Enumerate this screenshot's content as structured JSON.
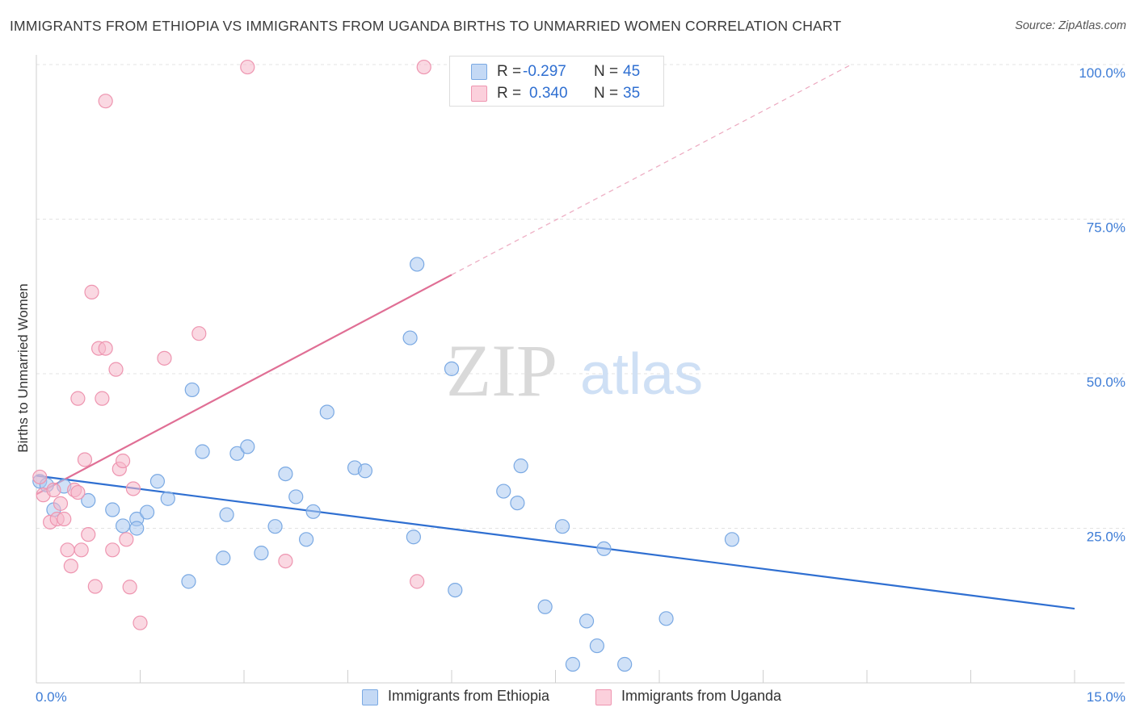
{
  "title": "IMMIGRANTS FROM ETHIOPIA VS IMMIGRANTS FROM UGANDA BIRTHS TO UNMARRIED WOMEN CORRELATION CHART",
  "source": "Source: ZipAtlas.com",
  "watermark": {
    "zip": "ZIP",
    "atlas": "atlas"
  },
  "legend": {
    "rows": [
      {
        "r_label": "R =",
        "r_value": "-0.297",
        "n_label": "N =",
        "n_value": "45",
        "color": "#aac8f0"
      },
      {
        "r_label": "R =",
        "r_value": "0.340",
        "n_label": "N =",
        "n_value": "35",
        "color": "#f6b8ca"
      }
    ]
  },
  "bottom_legend": [
    {
      "label": "Immigrants from Ethiopia",
      "color": "#aac8f0"
    },
    {
      "label": "Immigrants from Uganda",
      "color": "#f6b8ca"
    }
  ],
  "chart_data": {
    "type": "scatter",
    "title": "IMMIGRANTS FROM ETHIOPIA VS IMMIGRANTS FROM UGANDA BIRTHS TO UNMARRIED WOMEN CORRELATION CHART",
    "xlabel": "",
    "ylabel": "Births to Unmarried Women",
    "xlim": [
      0,
      15
    ],
    "ylim": [
      0,
      100
    ],
    "x_tick_labels": [
      "0.0%",
      "15.0%"
    ],
    "y_ticks": [
      25,
      50,
      75,
      100
    ],
    "y_tick_labels": [
      "25.0%",
      "50.0%",
      "75.0%",
      "100.0%"
    ],
    "grid": true,
    "legend_position": "top-center",
    "series": [
      {
        "name": "Immigrants from Ethiopia",
        "color": "#aac8f0",
        "stroke": "#7aa9e3",
        "trend_color": "#2f6fd1",
        "trend": {
          "x0": 0,
          "y0": 33.5,
          "x1": 15,
          "y1": 12.0
        },
        "points": [
          [
            0.05,
            32.6
          ],
          [
            0.25,
            28.0
          ],
          [
            0.4,
            31.8
          ],
          [
            0.75,
            29.5
          ],
          [
            1.1,
            28.0
          ],
          [
            1.25,
            25.4
          ],
          [
            1.45,
            26.5
          ],
          [
            1.6,
            27.6
          ],
          [
            1.75,
            32.6
          ],
          [
            1.9,
            29.8
          ],
          [
            2.2,
            16.4
          ],
          [
            2.25,
            47.4
          ],
          [
            2.4,
            37.4
          ],
          [
            2.7,
            20.2
          ],
          [
            2.75,
            27.2
          ],
          [
            2.9,
            37.1
          ],
          [
            3.05,
            38.2
          ],
          [
            3.25,
            21.0
          ],
          [
            3.45,
            25.3
          ],
          [
            3.6,
            33.8
          ],
          [
            3.75,
            30.1
          ],
          [
            3.9,
            23.2
          ],
          [
            4.0,
            27.7
          ],
          [
            4.2,
            43.8
          ],
          [
            4.6,
            34.8
          ],
          [
            4.75,
            34.3
          ],
          [
            5.4,
            55.8
          ],
          [
            5.45,
            23.6
          ],
          [
            5.5,
            67.7
          ],
          [
            6.0,
            50.8
          ],
          [
            6.05,
            15.0
          ],
          [
            6.75,
            31.0
          ],
          [
            6.95,
            29.1
          ],
          [
            7.0,
            35.1
          ],
          [
            7.35,
            12.3
          ],
          [
            7.6,
            25.3
          ],
          [
            7.75,
            3.0
          ],
          [
            7.95,
            10.0
          ],
          [
            8.1,
            6.0
          ],
          [
            8.2,
            21.7
          ],
          [
            8.5,
            3.0
          ],
          [
            9.1,
            10.4
          ],
          [
            10.05,
            23.2
          ],
          [
            0.15,
            32.0
          ],
          [
            1.45,
            25.0
          ]
        ]
      },
      {
        "name": "Immigrants from Uganda",
        "color": "#f6b8ca",
        "stroke": "#ee95b0",
        "trend_color": "#e06f95",
        "trend": {
          "x0": 0,
          "y0": 30.5,
          "x1": 6.0,
          "y1": 66.0
        },
        "trend_extension": {
          "x0": 6.0,
          "y0": 66.0,
          "x1": 15,
          "y1": 119.0
        },
        "points": [
          [
            0.05,
            33.3
          ],
          [
            0.1,
            30.4
          ],
          [
            0.2,
            26.0
          ],
          [
            0.25,
            31.2
          ],
          [
            0.3,
            26.5
          ],
          [
            0.35,
            29.0
          ],
          [
            0.4,
            26.5
          ],
          [
            0.45,
            21.5
          ],
          [
            0.5,
            18.9
          ],
          [
            0.55,
            31.2
          ],
          [
            0.6,
            46.0
          ],
          [
            0.65,
            21.5
          ],
          [
            0.7,
            36.1
          ],
          [
            0.75,
            24.0
          ],
          [
            0.8,
            63.2
          ],
          [
            0.85,
            15.6
          ],
          [
            0.9,
            54.1
          ],
          [
            0.95,
            46.0
          ],
          [
            1.0,
            54.1
          ],
          [
            1.1,
            21.5
          ],
          [
            1.15,
            50.7
          ],
          [
            1.2,
            34.6
          ],
          [
            1.25,
            35.9
          ],
          [
            1.3,
            23.2
          ],
          [
            1.35,
            15.5
          ],
          [
            1.4,
            31.4
          ],
          [
            1.5,
            9.7
          ],
          [
            1.85,
            52.5
          ],
          [
            2.35,
            56.5
          ],
          [
            3.6,
            19.7
          ],
          [
            5.5,
            16.4
          ],
          [
            3.05,
            99.6
          ],
          [
            5.6,
            99.6
          ],
          [
            1.0,
            94.1
          ],
          [
            0.6,
            30.8
          ]
        ]
      }
    ]
  }
}
